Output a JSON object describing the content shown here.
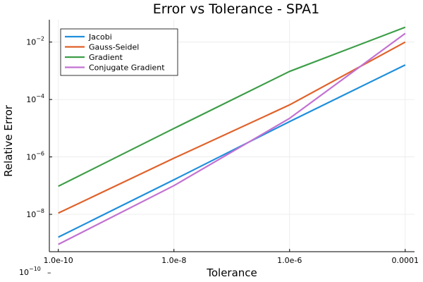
{
  "chart_data": {
    "type": "line",
    "title": "Error vs Tolerance - SPA1",
    "xlabel": "Tolerance",
    "ylabel": "Relative Error",
    "x_scale": "log10",
    "y_scale": "log10",
    "x": [
      1e-10,
      1e-08,
      1e-06,
      0.0001
    ],
    "x_tick_labels": [
      "1.0e-10",
      "1.0e-8",
      "1.0e-6",
      "0.0001"
    ],
    "y_ticks_exponent": [
      -8,
      -6,
      -4,
      -2
    ],
    "y_tick_base": "10",
    "stray_label": {
      "base": "10",
      "exponent": "−10",
      "dash": "–"
    },
    "xlim": [
      7e-11,
      0.000145
    ],
    "ylim": [
      5e-10,
      0.06
    ],
    "grid": true,
    "legend_position": "top-left",
    "series": [
      {
        "name": "Jacobi",
        "color": "#1f8fdc",
        "values": [
          1.6e-09,
          1.6e-07,
          1.7e-05,
          0.0016
        ]
      },
      {
        "name": "Gauss-Seidel",
        "color": "#e0622b",
        "values": [
          1.1e-08,
          9e-07,
          6.5e-05,
          0.01
        ]
      },
      {
        "name": "Gradient",
        "color": "#3d9e47",
        "values": [
          9.5e-08,
          9.8e-06,
          0.00095,
          0.033
        ]
      },
      {
        "name": "Conjugate Gradient",
        "color": "#c271d2",
        "values": [
          9e-10,
          1e-07,
          2.2e-05,
          0.02
        ]
      }
    ]
  }
}
